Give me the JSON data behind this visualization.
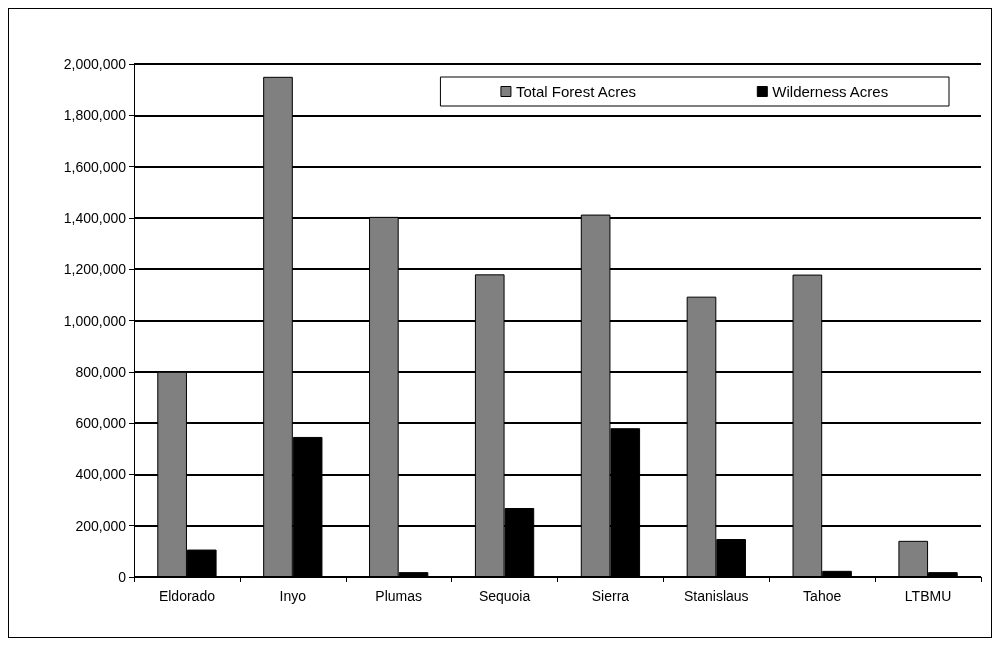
{
  "chart_data": {
    "type": "bar",
    "categories": [
      "Eldorado",
      "Inyo",
      "Plumas",
      "Sequoia",
      "Sierra",
      "Stanislaus",
      "Tahoe",
      "LTBMU"
    ],
    "series": [
      {
        "name": "Total Forest Acres",
        "color": "#808080",
        "values": [
          800000,
          1950000,
          1404000,
          1180000,
          1413000,
          1093000,
          1179000,
          141000
        ]
      },
      {
        "name": "Wilderness Acres",
        "color": "#000000",
        "values": [
          107000,
          546000,
          19000,
          269000,
          580000,
          148000,
          24000,
          19000
        ]
      }
    ],
    "ylim": [
      0,
      2000000
    ],
    "yticks": [
      0,
      {
        "value": 200000,
        "label": "200,000"
      },
      {
        "value": 400000,
        "label": "400,000"
      },
      {
        "value": 600000,
        "label": "600,000"
      },
      {
        "value": 800000,
        "label": "800,000"
      },
      {
        "value": 1000000,
        "label": "1,000,000"
      },
      {
        "value": 1200000,
        "label": "1,200,000"
      },
      {
        "value": 1400000,
        "label": "1,400,000"
      },
      {
        "value": 1600000,
        "label": "1,600,000"
      },
      {
        "value": 1800000,
        "label": "1,800,000"
      },
      {
        "value": 2000000,
        "label": "2,000,000"
      }
    ],
    "grid": "y",
    "legend": "top right"
  }
}
